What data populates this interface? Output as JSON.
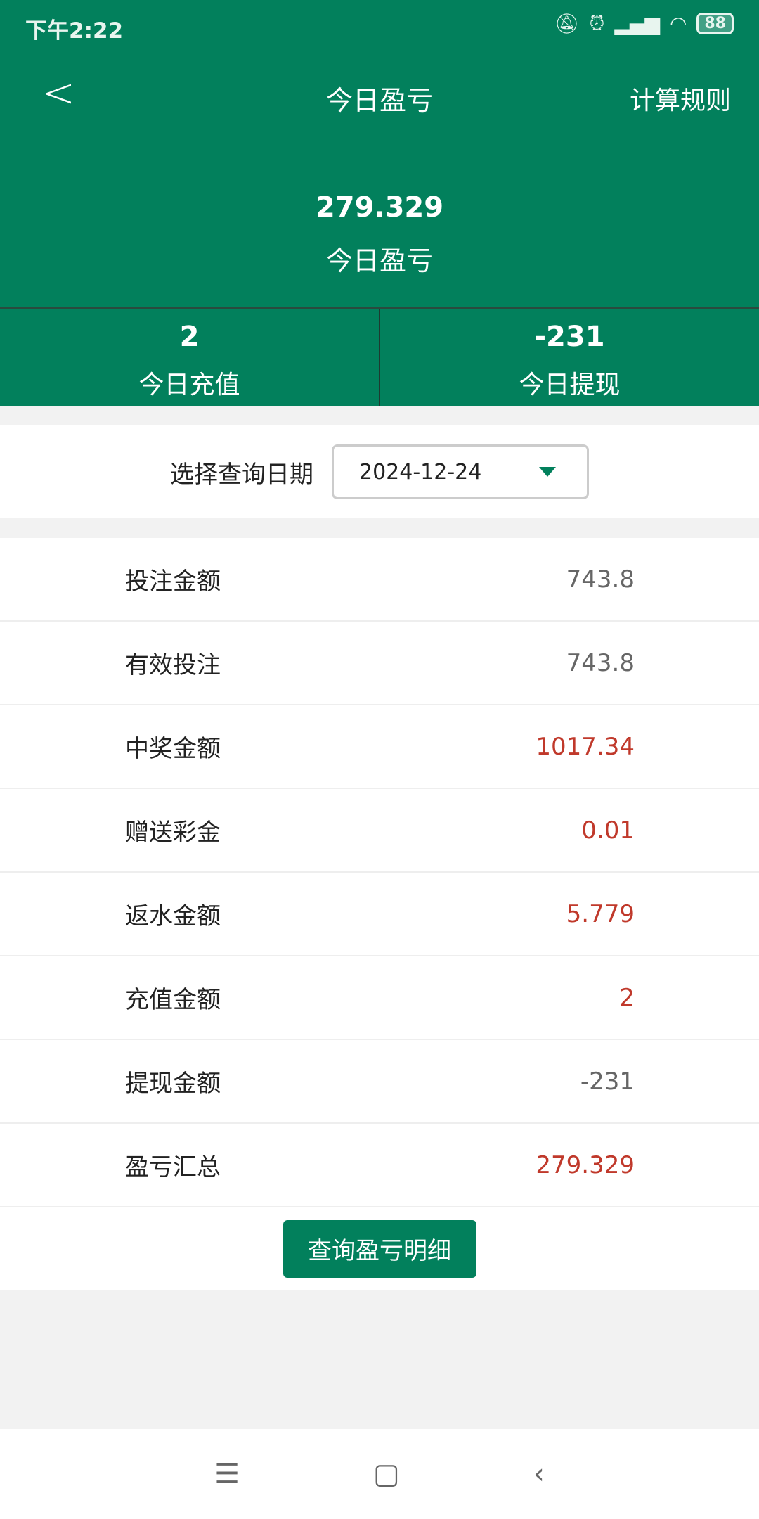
{
  "status_bar": {
    "time": "下午2:22",
    "battery": "88"
  },
  "header": {
    "title": "今日盈亏",
    "rules": "计算规则"
  },
  "summary": {
    "amount": "279.329",
    "label": "今日盈亏"
  },
  "stats": [
    {
      "value": "2",
      "label": "今日充值"
    },
    {
      "value": "-231",
      "label": "今日提现"
    }
  ],
  "date_picker": {
    "label": "选择查询日期",
    "value": "2024-12-24"
  },
  "rows": [
    {
      "label": "投注金额",
      "value": "743.8",
      "color": "gray"
    },
    {
      "label": "有效投注",
      "value": "743.8",
      "color": "gray"
    },
    {
      "label": "中奖金额",
      "value": "1017.34",
      "color": "red"
    },
    {
      "label": "赠送彩金",
      "value": "0.01",
      "color": "red"
    },
    {
      "label": "返水金额",
      "value": "5.779",
      "color": "red"
    },
    {
      "label": "充值金额",
      "value": "2",
      "color": "red"
    },
    {
      "label": "提现金额",
      "value": "-231",
      "color": "gray"
    },
    {
      "label": "盈亏汇总",
      "value": "279.329",
      "color": "red"
    }
  ],
  "detail_button": "查询盈亏明细",
  "colors": {
    "primary": "#02805c",
    "positive": "#c0392b",
    "neutral": "#666666"
  }
}
